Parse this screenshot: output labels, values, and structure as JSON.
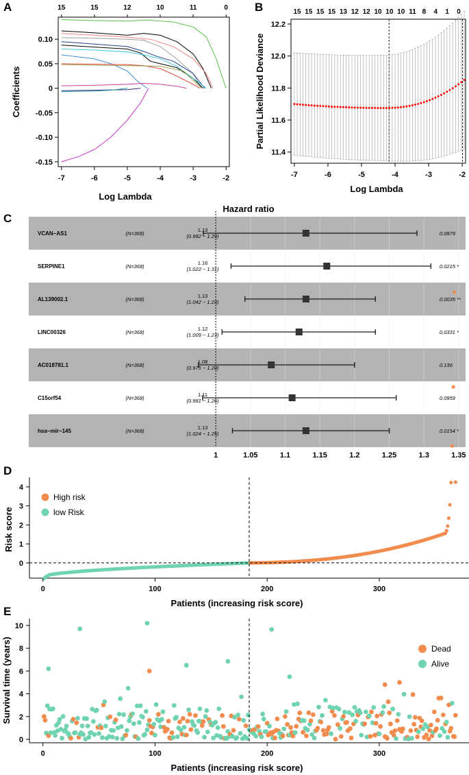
{
  "panels": {
    "A": {
      "letter": "A",
      "chart_data": {
        "type": "line",
        "title": "",
        "xlabel": "Log Lambda",
        "ylabel": "Coefficients",
        "xlim": [
          -7.1,
          -1.9
        ],
        "ylim": [
          -0.16,
          0.145
        ],
        "x_ticks": [
          -7,
          -6,
          -5,
          -4,
          -3,
          -2
        ],
        "x_tick_labels": [
          "-7",
          "-6",
          "-5",
          "-4",
          "-3",
          "-2"
        ],
        "y_ticks": [
          -0.15,
          -0.1,
          -0.05,
          0,
          0.05,
          0.1
        ],
        "y_tick_labels": [
          "-0.15",
          "-0.10",
          "-0.05",
          "0",
          "0.05",
          "0.10"
        ],
        "top_axis_ticks": [
          -7,
          -6,
          -5,
          -4,
          -3,
          -2
        ],
        "top_axis_labels": [
          "15",
          "15",
          "12",
          "10",
          "11",
          "0"
        ],
        "series": [
          {
            "name": "green",
            "color": "#55c243",
            "points": [
              [
                -7,
                0.14
              ],
              [
                -6,
                0.138
              ],
              [
                -5,
                0.137
              ],
              [
                -4.4,
                0.139
              ],
              [
                -3.6,
                0.135
              ],
              [
                -3.0,
                0.125
              ],
              [
                -2.6,
                0.105
              ],
              [
                -2.3,
                0.06
              ],
              [
                -2.0,
                0.0
              ]
            ]
          },
          {
            "name": "black1",
            "color": "#000000",
            "points": [
              [
                -7,
                0.117
              ],
              [
                -6,
                0.113
              ],
              [
                -5,
                0.108
              ],
              [
                -4.5,
                0.112
              ],
              [
                -4.0,
                0.108
              ],
              [
                -3.5,
                0.095
              ],
              [
                -3.0,
                0.07
              ],
              [
                -2.7,
                0.04
              ],
              [
                -2.45,
                0.0
              ]
            ]
          },
          {
            "name": "pink",
            "color": "#f08080",
            "points": [
              [
                -7,
                0.112
              ],
              [
                -6,
                0.108
              ],
              [
                -5,
                0.104
              ],
              [
                -4.3,
                0.1
              ],
              [
                -3.6,
                0.085
              ],
              [
                -3.0,
                0.06
              ],
              [
                -2.6,
                0.03
              ],
              [
                -2.4,
                0.0
              ]
            ]
          },
          {
            "name": "gray",
            "color": "#9e9e9e",
            "points": [
              [
                -7,
                0.103
              ],
              [
                -6,
                0.102
              ],
              [
                -5,
                0.1
              ],
              [
                -4.5,
                0.098
              ],
              [
                -4.0,
                0.085
              ],
              [
                -3.5,
                0.06
              ],
              [
                -3.0,
                0.03
              ],
              [
                -2.75,
                0.0
              ]
            ]
          },
          {
            "name": "navy",
            "color": "#1e3f8f",
            "points": [
              [
                -7,
                0.095
              ],
              [
                -6,
                0.09
              ],
              [
                -5,
                0.085
              ],
              [
                -4.5,
                0.075
              ],
              [
                -4.1,
                0.065
              ],
              [
                -3.6,
                0.055
              ],
              [
                -3.0,
                0.03
              ],
              [
                -2.65,
                0.0
              ]
            ]
          },
          {
            "name": "black2",
            "color": "#000000",
            "points": [
              [
                -7,
                0.088
              ],
              [
                -6,
                0.084
              ],
              [
                -5,
                0.08
              ],
              [
                -4.6,
                0.072
              ],
              [
                -4.3,
                0.055
              ],
              [
                -4.0,
                0.05
              ],
              [
                -3.5,
                0.042
              ],
              [
                -3.0,
                0.02
              ],
              [
                -2.7,
                0.0
              ]
            ]
          },
          {
            "name": "cyan",
            "color": "#3cc6d8",
            "points": [
              [
                -7,
                0.08
              ],
              [
                -6,
                0.078
              ],
              [
                -5,
                0.074
              ],
              [
                -4.5,
                0.068
              ],
              [
                -4.0,
                0.06
              ],
              [
                -3.5,
                0.045
              ],
              [
                -3.0,
                0.02
              ],
              [
                -2.6,
                0.0
              ]
            ]
          },
          {
            "name": "blue",
            "color": "#3a8fd9",
            "points": [
              [
                -7,
                0.068
              ],
              [
                -6,
                0.06
              ],
              [
                -5.5,
                0.05
              ],
              [
                -5.0,
                0.035
              ],
              [
                -4.7,
                0.015
              ],
              [
                -4.4,
                0.0
              ]
            ]
          },
          {
            "name": "red",
            "color": "#e0453c",
            "points": [
              [
                -7,
                0.05
              ],
              [
                -6,
                0.049
              ],
              [
                -5,
                0.048
              ],
              [
                -4.5,
                0.046
              ],
              [
                -4.0,
                0.04
              ],
              [
                -3.5,
                0.025
              ],
              [
                -3.0,
                0.008
              ],
              [
                -2.8,
                0.0
              ]
            ]
          },
          {
            "name": "olive",
            "color": "#9aa54a",
            "points": [
              [
                -7,
                0.048
              ],
              [
                -6,
                0.047
              ],
              [
                -5,
                0.046
              ],
              [
                -4.0,
                0.045
              ],
              [
                -3.3,
                0.035
              ],
              [
                -2.9,
                0.01
              ],
              [
                -2.75,
                0.0
              ]
            ]
          },
          {
            "name": "magenta_small",
            "color": "#d03aa0",
            "points": [
              [
                -7,
                0.005
              ],
              [
                -6,
                0.006
              ],
              [
                -5,
                0.008
              ],
              [
                -4.5,
                0.01
              ],
              [
                -4.0,
                0.008
              ],
              [
                -3.5,
                0.004
              ],
              [
                -3.2,
                0.0
              ]
            ]
          },
          {
            "name": "navy_neg",
            "color": "#2a2a8c",
            "points": [
              [
                -7,
                -0.005
              ],
              [
                -6,
                -0.004
              ],
              [
                -5,
                -0.003
              ],
              [
                -4.6,
                0.0
              ]
            ]
          },
          {
            "name": "teal_neg",
            "color": "#2aa198",
            "points": [
              [
                -7,
                -0.007
              ],
              [
                -6,
                -0.006
              ],
              [
                -5.5,
                -0.004
              ],
              [
                -5.0,
                0.0
              ]
            ]
          },
          {
            "name": "magenta",
            "color": "#c832c8",
            "points": [
              [
                -7,
                -0.15
              ],
              [
                -6.5,
                -0.14
              ],
              [
                -6,
                -0.125
              ],
              [
                -5.5,
                -0.1
              ],
              [
                -5.0,
                -0.065
              ],
              [
                -4.6,
                -0.03
              ],
              [
                -4.35,
                0.0
              ]
            ]
          }
        ]
      }
    },
    "B": {
      "letter": "B",
      "chart_data": {
        "type": "scatter",
        "title": "",
        "xlabel": "Log Lambda",
        "ylabel": "Partial Likelihood Deviance",
        "xlim": [
          -7.1,
          -1.9
        ],
        "ylim": [
          11.33,
          12.23
        ],
        "x_ticks": [
          -7,
          -6,
          -5,
          -4,
          -3,
          -2
        ],
        "x_tick_labels": [
          "-7",
          "-6",
          "-5",
          "-4",
          "-3",
          "-2"
        ],
        "y_ticks": [
          11.4,
          11.6,
          11.8,
          12.0,
          12.2
        ],
        "y_tick_labels": [
          "11.4",
          "11.6",
          "11.8",
          "12.0",
          "12.2"
        ],
        "top_axis_labels": [
          "15",
          "15",
          "15",
          "15",
          "13",
          "12",
          "12",
          "10",
          "10",
          "10",
          "11",
          "8",
          "4",
          "1",
          "0"
        ],
        "vlines": [
          -4.18,
          -1.99
        ],
        "cv_curve": {
          "x_start": -7.0,
          "x_end": -1.94,
          "n": 60,
          "mean_min": 11.675,
          "mean_left": 11.7,
          "mean_right": 11.85,
          "x_min": -4.3,
          "halfwidth_left": 0.32,
          "halfwidth_min": 0.33,
          "halfwidth_right": 0.43,
          "color": "#ff0000"
        }
      }
    },
    "C": {
      "letter": "C",
      "title": "Hazard ratio",
      "chart_data": {
        "type": "forest",
        "xlim": [
          0.99,
          1.36
        ],
        "x_ticks": [
          1,
          1.05,
          1.1,
          1.15,
          1.2,
          1.25,
          1.3,
          1.35
        ],
        "x_tick_labels": [
          "1",
          "1.05",
          "1.1",
          "1.15",
          "1.2",
          "1.25",
          "1.3",
          "1.35"
        ],
        "reference": 1,
        "rows": [
          {
            "gene": "VCAN−AS1",
            "n": "(N=368)",
            "hr": 1.13,
            "low": 0.982,
            "high": 1.29,
            "hr_label": "1.13",
            "ci_label": "(0.982 − 1.29)",
            "p_label": "0.0879",
            "shaded": true
          },
          {
            "gene": "SERPINE1",
            "n": "(N=368)",
            "hr": 1.16,
            "low": 1.022,
            "high": 1.31,
            "hr_label": "1.16",
            "ci_label": "(1.022 − 1.31)",
            "p_label": "0.0215 *",
            "shaded": false
          },
          {
            "gene": "AL139002.1",
            "n": "(N=368)",
            "hr": 1.13,
            "low": 1.042,
            "high": 1.23,
            "hr_label": "1.13",
            "ci_label": "(1.042 − 1.23)",
            "p_label": "0.0035 **",
            "shaded": true
          },
          {
            "gene": "LINC00326",
            "n": "(N=368)",
            "hr": 1.12,
            "low": 1.009,
            "high": 1.23,
            "hr_label": "1.12",
            "ci_label": "(1.009 − 1.23)",
            "p_label": "0.0331 *",
            "shaded": false
          },
          {
            "gene": "AC018781.1",
            "n": "(N=368)",
            "hr": 1.08,
            "low": 0.975,
            "high": 1.2,
            "hr_label": "1.08",
            "ci_label": "(0.975 − 1.20)",
            "p_label": "0.136",
            "shaded": true
          },
          {
            "gene": "C15orf54",
            "n": "(N=368)",
            "hr": 1.11,
            "low": 0.981,
            "high": 1.26,
            "hr_label": "1.11",
            "ci_label": "(0.981 − 1.26)",
            "p_label": "0.0959",
            "shaded": false
          },
          {
            "gene": "hsa−mir−145",
            "n": "(N=368)",
            "hr": 1.13,
            "low": 1.024,
            "high": 1.25,
            "hr_label": "1.13",
            "ci_label": "(1.024 − 1.25)",
            "p_label": "0.0154 *",
            "shaded": true
          }
        ]
      }
    },
    "D": {
      "letter": "D",
      "chart_data": {
        "type": "scatter",
        "xlabel": "Patients (increasing risk score)",
        "ylabel": "Risk score",
        "xlim": [
          -12,
          380
        ],
        "ylim": [
          -0.8,
          4.5
        ],
        "x_ticks": [
          0,
          100,
          200,
          300
        ],
        "x_tick_labels": [
          "0",
          "100",
          "200",
          "300"
        ],
        "y_ticks": [
          0,
          1,
          2,
          3,
          4
        ],
        "y_tick_labels": [
          "0",
          "1",
          "2",
          "3",
          "4"
        ],
        "n_patients": 368,
        "cutoff_index": 184,
        "hline": 0,
        "legend": [
          {
            "label": "High risk",
            "color": "#f28c4e"
          },
          {
            "label": "low Risk",
            "color": "#6fd3b0"
          }
        ]
      }
    },
    "E": {
      "letter": "E",
      "chart_data": {
        "type": "scatter",
        "xlabel": "Patients (increasing risk score)",
        "ylabel": "Survival time (years)",
        "xlim": [
          -12,
          380
        ],
        "ylim": [
          -0.3,
          10.6
        ],
        "x_ticks": [
          0,
          100,
          200,
          300
        ],
        "x_tick_labels": [
          "0",
          "100",
          "200",
          "300"
        ],
        "y_ticks": [
          0,
          2,
          4,
          6,
          8,
          10
        ],
        "y_tick_labels": [
          "0",
          "2",
          "4",
          "6",
          "8",
          "10"
        ],
        "n_patients": 368,
        "cutoff_index": 184,
        "notable_points": [
          {
            "x": 33,
            "y": 9.7,
            "status": "Alive"
          },
          {
            "x": 93,
            "y": 10.2,
            "status": "Alive"
          },
          {
            "x": 204,
            "y": 9.65,
            "status": "Alive"
          },
          {
            "x": 5,
            "y": 6.2,
            "status": "Alive"
          },
          {
            "x": 95,
            "y": 6.0,
            "status": "Dead"
          },
          {
            "x": 165,
            "y": 6.85,
            "status": "Alive"
          },
          {
            "x": 128,
            "y": 6.5,
            "status": "Alive"
          },
          {
            "x": 220,
            "y": 5.5,
            "status": "Alive"
          },
          {
            "x": 305,
            "y": 4.8,
            "status": "Dead"
          },
          {
            "x": 318,
            "y": 5.0,
            "status": "Dead"
          }
        ],
        "legend": [
          {
            "label": "Dead",
            "color": "#f28c4e"
          },
          {
            "label": "Alive",
            "color": "#6fd3b0"
          }
        ]
      }
    }
  }
}
